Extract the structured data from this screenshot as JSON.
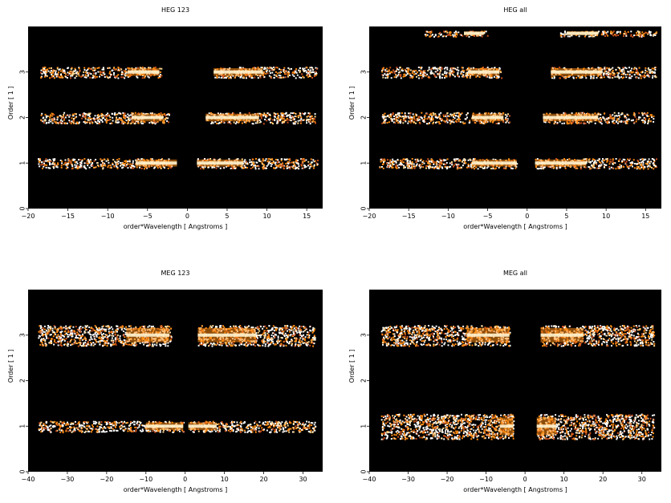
{
  "chart_data": [
    {
      "type": "heatmap",
      "title": "HEG 123",
      "xlabel": "order*Wavelength [ Angstroms ]",
      "ylabel": "Order [ 1 ]",
      "xlim": [
        -20,
        17
      ],
      "ylim": [
        0,
        4
      ],
      "xticks": [
        -20,
        -15,
        -10,
        -5,
        0,
        5,
        10,
        15
      ],
      "yticks": [
        0,
        1,
        2,
        3
      ],
      "background": "#000000",
      "bands": [
        {
          "order": 1,
          "segments": [
            [
              -18.8,
              -2.0
            ],
            [
              1.2,
              16.3
            ]
          ],
          "bright": [
            [
              -6.5,
              -1.3
            ],
            [
              1.2,
              7.0
            ]
          ],
          "width": 0.22
        },
        {
          "order": 2,
          "segments": [
            [
              -18.5,
              -2.3
            ],
            [
              2.3,
              16.0
            ]
          ],
          "bright": [
            [
              -7.0,
              -3.0
            ],
            [
              2.3,
              9.0
            ]
          ],
          "width": 0.24
        },
        {
          "order": 3,
          "segments": [
            [
              -18.5,
              -3.3
            ],
            [
              3.3,
              16.3
            ]
          ],
          "bright": [
            [
              -7.5,
              -3.5
            ],
            [
              3.3,
              9.5
            ]
          ],
          "width": 0.24
        }
      ],
      "heat": "#ff8c14",
      "highlight": "#fff4d0"
    },
    {
      "type": "heatmap",
      "title": "HEG all",
      "xlabel": "order*Wavelength [ Angstroms ]",
      "ylabel": "Order [ 1 ]",
      "xlim": [
        -20,
        17
      ],
      "ylim": [
        0,
        4
      ],
      "xticks": [
        -20,
        -15,
        -10,
        -5,
        0,
        5,
        10,
        15
      ],
      "yticks": [
        0,
        1,
        2,
        3
      ],
      "background": "#000000",
      "bands": [
        {
          "order": 1,
          "segments": [
            [
              -18.8,
              -1.3
            ],
            [
              1.0,
              16.3
            ]
          ],
          "bright": [
            [
              -7.0,
              -1.3
            ],
            [
              1.0,
              7.5
            ]
          ],
          "width": 0.22
        },
        {
          "order": 2,
          "segments": [
            [
              -18.5,
              -2.3
            ],
            [
              2.0,
              16.0
            ]
          ],
          "bright": [
            [
              -7.0,
              -3.0
            ],
            [
              2.0,
              9.0
            ]
          ],
          "width": 0.24
        },
        {
          "order": 3,
          "segments": [
            [
              -18.5,
              -3.3
            ],
            [
              3.0,
              16.3
            ]
          ],
          "bright": [
            [
              -7.5,
              -3.5
            ],
            [
              3.0,
              9.5
            ]
          ],
          "width": 0.24
        },
        {
          "order": 3.85,
          "segments": [
            [
              -13.0,
              -5.0
            ],
            [
              4.0,
              16.3
            ]
          ],
          "bright": [
            [
              -8.0,
              -5.5
            ],
            [
              5.0,
              9.0
            ]
          ],
          "width": 0.12
        }
      ],
      "heat": "#ff8c14",
      "highlight": "#fff4d0"
    },
    {
      "type": "heatmap",
      "title": "MEG 123",
      "xlabel": "order*Wavelength [ Angstroms ]",
      "ylabel": "Order [ 1 ]",
      "xlim": [
        -40,
        35
      ],
      "ylim": [
        0,
        4
      ],
      "xticks": [
        -40,
        -30,
        -20,
        -10,
        0,
        10,
        20,
        30
      ],
      "yticks": [
        0,
        1,
        2,
        3
      ],
      "background": "#000000",
      "bands": [
        {
          "order": 1,
          "segments": [
            [
              -37.5,
              -0.5
            ],
            [
              0.8,
              33.0
            ]
          ],
          "bright": [
            [
              -10.0,
              -0.5
            ],
            [
              0.8,
              8.0
            ]
          ],
          "width": 0.24
        },
        {
          "order": 3,
          "segments": [
            [
              -37.5,
              -3.5
            ],
            [
              3.2,
              33.0
            ]
          ],
          "bright": [
            [
              -15.0,
              -4.0
            ],
            [
              3.2,
              18.0
            ]
          ],
          "width": 0.45
        }
      ],
      "heat": "#ff8c14",
      "highlight": "#fff4d0"
    },
    {
      "type": "heatmap",
      "title": "MEG all",
      "xlabel": "order*Wavelength [ Angstroms ]",
      "ylabel": "Order [ 1 ]",
      "xlim": [
        -40,
        35
      ],
      "ylim": [
        0,
        4
      ],
      "xticks": [
        -40,
        -30,
        -20,
        -10,
        0,
        10,
        20,
        30
      ],
      "yticks": [
        0,
        1,
        2,
        3
      ],
      "background": "#000000",
      "bands": [
        {
          "order": 1,
          "segments": [
            [
              -37.0,
              -3.0
            ],
            [
              3.0,
              33.0
            ]
          ],
          "bright": [
            [
              -6.5,
              -3.0
            ],
            [
              3.0,
              8.0
            ]
          ],
          "width": 0.55
        },
        {
          "order": 3,
          "segments": [
            [
              -37.0,
              -4.0
            ],
            [
              4.0,
              33.0
            ]
          ],
          "bright": [
            [
              -15.0,
              -4.0
            ],
            [
              4.0,
              15.0
            ]
          ],
          "width": 0.45
        }
      ],
      "heat": "#ff8c14",
      "highlight": "#fff4d0"
    }
  ]
}
